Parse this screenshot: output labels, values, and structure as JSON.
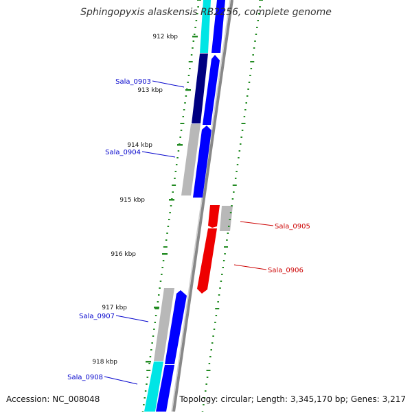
{
  "title": "Sphingopyxis alaskensis RB2256, complete genome",
  "accession": "Accession: NC_008048",
  "stats": "Topology: circular; Length: 3,345,170 bp; Genes: 3,217",
  "kbp_ticks": [
    "912 kbp",
    "913 kbp",
    "914 kbp",
    "915 kbp",
    "916 kbp",
    "917 kbp",
    "918 kbp"
  ],
  "genes": [
    {
      "label": "Sala_0903",
      "color": "#0000cc",
      "strand": "left"
    },
    {
      "label": "Sala_0904",
      "color": "#0000cc",
      "strand": "left"
    },
    {
      "label": "Sala_0905",
      "color": "#cc0000",
      "strand": "right"
    },
    {
      "label": "Sala_0906",
      "color": "#cc0000",
      "strand": "right"
    },
    {
      "label": "Sala_0907",
      "color": "#0000cc",
      "strand": "left"
    },
    {
      "label": "Sala_0908",
      "color": "#0000cc",
      "strand": "left"
    }
  ],
  "colors": {
    "backbone": "#888888",
    "forward_cds": "#0000ff",
    "reverse_cds": "#ff0000",
    "dark_cds": "#000080",
    "gray_feature": "#b0b0b0",
    "cyan_feature": "#00e5e5",
    "gc_dots": "#228b22"
  }
}
